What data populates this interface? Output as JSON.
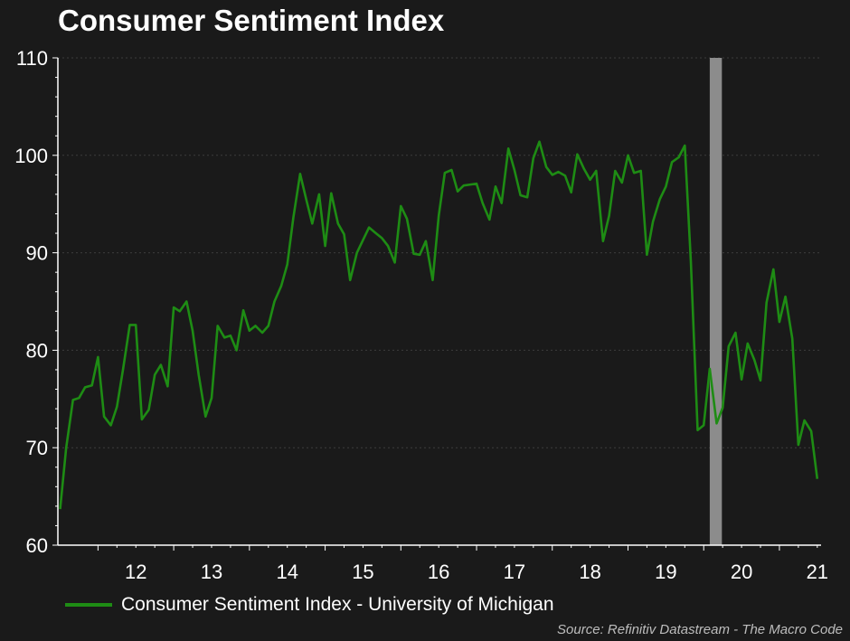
{
  "chart_data": {
    "type": "line",
    "title": "Consumer Sentiment Index",
    "xlabel": "",
    "ylabel": "",
    "ylim": [
      60,
      110
    ],
    "yticks": [
      60,
      70,
      80,
      90,
      100,
      110
    ],
    "x_tick_labels": [
      "12",
      "13",
      "14",
      "15",
      "16",
      "17",
      "18",
      "19",
      "20",
      "21"
    ],
    "x_tick_positions": [
      2012,
      2013,
      2014,
      2015,
      2016,
      2017,
      2018,
      2019,
      2020,
      2021
    ],
    "xlim": [
      2011.47,
      2021.55
    ],
    "grid": true,
    "legend_position": "bottom-left",
    "shaded_period": {
      "start": 2020.08,
      "end": 2020.24
    },
    "series": [
      {
        "name": "Consumer Sentiment Index - University of Michigan",
        "color": "#1e8c14",
        "x": [
          2011.5,
          2011.58,
          2011.67,
          2011.75,
          2011.83,
          2011.92,
          2012.0,
          2012.08,
          2012.17,
          2012.25,
          2012.33,
          2012.42,
          2012.5,
          2012.58,
          2012.67,
          2012.75,
          2012.83,
          2012.92,
          2013.0,
          2013.08,
          2013.17,
          2013.25,
          2013.33,
          2013.42,
          2013.5,
          2013.58,
          2013.67,
          2013.75,
          2013.83,
          2013.92,
          2014.0,
          2014.08,
          2014.17,
          2014.25,
          2014.33,
          2014.42,
          2014.5,
          2014.58,
          2014.67,
          2014.75,
          2014.83,
          2014.92,
          2015.0,
          2015.08,
          2015.17,
          2015.25,
          2015.33,
          2015.42,
          2015.5,
          2015.58,
          2015.67,
          2015.75,
          2015.83,
          2015.92,
          2016.0,
          2016.08,
          2016.17,
          2016.25,
          2016.33,
          2016.42,
          2016.5,
          2016.58,
          2016.67,
          2016.75,
          2016.83,
          2016.92,
          2017.0,
          2017.08,
          2017.17,
          2017.25,
          2017.33,
          2017.42,
          2017.5,
          2017.58,
          2017.67,
          2017.75,
          2017.83,
          2017.92,
          2018.0,
          2018.08,
          2018.17,
          2018.25,
          2018.33,
          2018.42,
          2018.5,
          2018.58,
          2018.67,
          2018.75,
          2018.83,
          2018.92,
          2019.0,
          2019.08,
          2019.17,
          2019.25,
          2019.33,
          2019.42,
          2019.5,
          2019.58,
          2019.67,
          2019.75,
          2019.83,
          2019.92,
          2020.0,
          2020.08,
          2020.17,
          2020.25,
          2020.33,
          2020.42,
          2020.5,
          2020.58,
          2020.67,
          2020.75,
          2020.83,
          2020.92,
          2021.0,
          2021.08,
          2021.17,
          2021.25,
          2021.33,
          2021.42,
          2021.5
        ],
        "values": [
          63.7,
          70.0,
          74.9,
          75.1,
          76.2,
          76.4,
          79.3,
          73.2,
          72.3,
          74.2,
          78.0,
          82.6,
          82.6,
          72.9,
          73.9,
          77.5,
          78.5,
          76.3,
          84.4,
          84.0,
          85.0,
          82.0,
          77.5,
          73.2,
          75.1,
          82.5,
          81.3,
          81.5,
          80.0,
          84.1,
          82.0,
          82.5,
          81.8,
          82.5,
          85.0,
          86.6,
          88.8,
          93.6,
          98.1,
          95.5,
          93.0,
          96.0,
          90.7,
          96.1,
          93.0,
          91.9,
          87.2,
          90.0,
          91.3,
          92.6,
          92.0,
          91.5,
          90.7,
          89.0,
          94.8,
          93.5,
          89.9,
          89.8,
          91.2,
          87.2,
          93.8,
          98.2,
          98.5,
          96.3,
          96.9,
          97.0,
          97.1,
          95.1,
          93.4,
          96.8,
          95.1,
          100.7,
          98.5,
          95.9,
          95.7,
          99.7,
          101.4,
          98.8,
          98.0,
          98.3,
          97.9,
          96.2,
          100.1,
          98.6,
          97.5,
          98.4,
          91.2,
          93.8,
          98.4,
          97.2,
          100.0,
          98.2,
          98.4,
          89.8,
          93.2,
          95.5,
          96.8,
          99.3,
          99.8,
          101.0,
          89.1,
          71.8,
          72.3,
          78.1,
          72.5,
          74.1,
          80.4,
          81.8,
          77.0,
          80.7,
          79.0,
          76.9,
          84.9,
          88.3,
          82.9,
          85.5,
          81.2,
          70.3,
          72.8,
          71.7,
          66.8
        ]
      }
    ],
    "source": "Source: Refinitiv Datastream - The Macro Code"
  }
}
